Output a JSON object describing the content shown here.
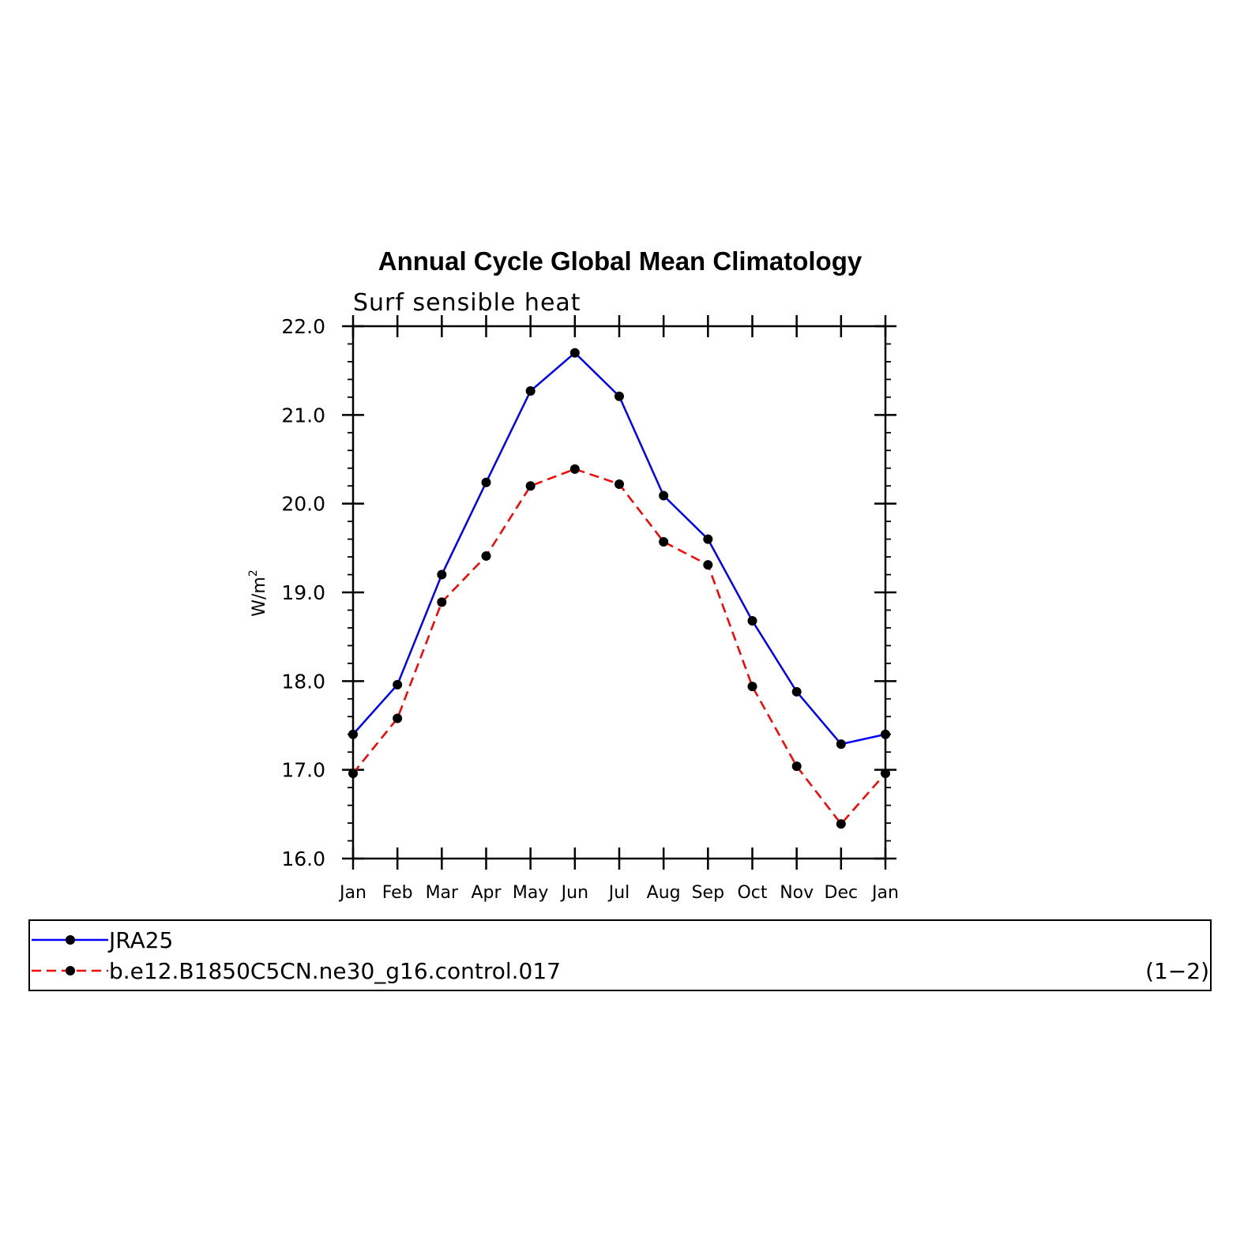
{
  "chart_data": {
    "type": "line",
    "title": "Annual Cycle Global Mean Climatology",
    "subtitle": "Surf  sensible  heat",
    "ylabel_base": "W/m",
    "ylabel_sup": "2",
    "xlabel": "",
    "categories": [
      "Jan",
      "Feb",
      "Mar",
      "Apr",
      "May",
      "Jun",
      "Jul",
      "Aug",
      "Sep",
      "Oct",
      "Nov",
      "Dec",
      "Jan"
    ],
    "ylim": [
      16.0,
      22.0
    ],
    "yticks": [
      16.0,
      17.0,
      18.0,
      19.0,
      20.0,
      21.0,
      22.0
    ],
    "ytick_labels": [
      "16.0",
      "17.0",
      "18.0",
      "19.0",
      "20.0",
      "21.0",
      "22.0"
    ],
    "grid": false,
    "series": [
      {
        "name": "JRA25",
        "color": "#0000ff",
        "dashed": false,
        "values": [
          17.4,
          17.96,
          19.2,
          20.24,
          21.27,
          21.7,
          21.21,
          20.09,
          19.6,
          18.68,
          17.88,
          17.29,
          17.4
        ]
      },
      {
        "name": "b.e12.B1850C5CN.ne30_g16.control.017",
        "color": "#ff0000",
        "dashed": true,
        "values": [
          16.96,
          17.58,
          18.89,
          19.41,
          20.2,
          20.39,
          20.22,
          19.57,
          19.31,
          17.94,
          17.04,
          16.39,
          16.96
        ]
      }
    ],
    "legend_placement": "bottom",
    "legend_note": "(1−2)"
  }
}
